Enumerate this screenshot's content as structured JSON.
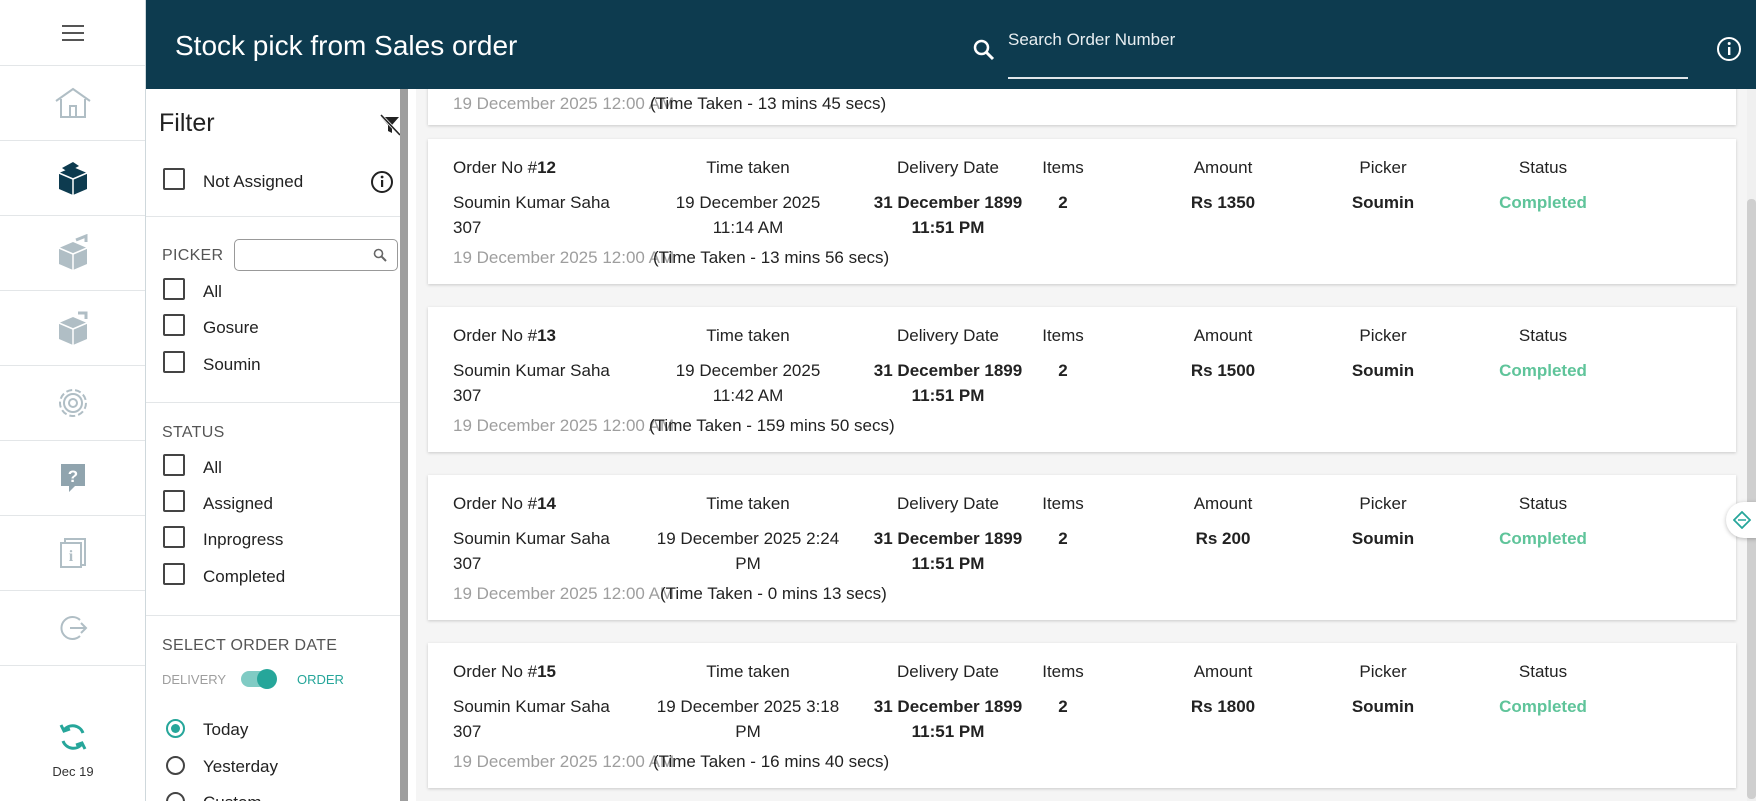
{
  "header": {
    "title": "Stock pick from Sales order",
    "search_placeholder": "Search Order Number"
  },
  "rail": {
    "items": [
      "menu-icon",
      "home-icon",
      "box-open-icon",
      "box-out-icon",
      "box-in-icon",
      "gear-icon",
      "help-icon",
      "info-doc-icon",
      "logout-icon"
    ],
    "sync_date": "Dec 19"
  },
  "filter": {
    "title": "Filter",
    "not_assigned": "Not Assigned",
    "picker_label": "PICKER",
    "pickers": [
      "All",
      "Gosure",
      "Soumin"
    ],
    "status_label": "STATUS",
    "statuses": [
      "All",
      "Assigned",
      "Inprogress",
      "Completed"
    ],
    "date_label": "SELECT ORDER DATE",
    "toggle_left": "DELIVERY",
    "toggle_right": "ORDER",
    "date_options": [
      "Today",
      "Yesterday",
      "Custom"
    ],
    "selected_date_option": "Today"
  },
  "columns": {
    "time_taken": "Time taken",
    "delivery_date": "Delivery Date",
    "items": "Items",
    "amount": "Amount",
    "picker": "Picker",
    "status": "Status",
    "order_prefix": "Order No #"
  },
  "partial_row": {
    "created": "19 December 2025 12:00 AM",
    "duration": "(Time Taken - 13 mins 45 secs)"
  },
  "orders": [
    {
      "number": "12",
      "customer": "Soumin Kumar Saha",
      "customer_code": "307",
      "time_taken_line1": "19 December 2025",
      "time_taken_line2": "11:14 AM",
      "delivery_line1": "31 December 1899",
      "delivery_line2": "11:51 PM",
      "items": "2",
      "amount": "Rs 1350",
      "picker": "Soumin",
      "status": "Completed",
      "created": "19 December 2025 12:00 AM",
      "duration": "(Time Taken - 13 mins 56 secs)"
    },
    {
      "number": "13",
      "customer": "Soumin Kumar Saha",
      "customer_code": "307",
      "time_taken_line1": "19 December 2025",
      "time_taken_line2": "11:42 AM",
      "delivery_line1": "31 December 1899",
      "delivery_line2": "11:51 PM",
      "items": "2",
      "amount": "Rs 1500",
      "picker": "Soumin",
      "status": "Completed",
      "created": "19 December 2025 12:00 AM",
      "duration": "(Time Taken - 159 mins 50 secs)"
    },
    {
      "number": "14",
      "customer": "Soumin Kumar Saha",
      "customer_code": "307",
      "time_taken_line1": "19 December 2025 2:24",
      "time_taken_line2": "PM",
      "delivery_line1": "31 December 1899",
      "delivery_line2": "11:51 PM",
      "items": "2",
      "amount": "Rs 200",
      "picker": "Soumin",
      "status": "Completed",
      "created": "19 December 2025 12:00 AM",
      "duration": "(Time Taken - 0 mins 13 secs)"
    },
    {
      "number": "15",
      "customer": "Soumin Kumar Saha",
      "customer_code": "307",
      "time_taken_line1": "19 December 2025 3:18",
      "time_taken_line2": "PM",
      "delivery_line1": "31 December 1899",
      "delivery_line2": "11:51 PM",
      "items": "2",
      "amount": "Rs 1800",
      "picker": "Soumin",
      "status": "Completed",
      "created": "19 December 2025 12:00 AM",
      "duration": "(Time Taken - 16 mins 40 secs)"
    }
  ],
  "colors": {
    "header_bg": "#0d3b4f",
    "accent_teal": "#26a69a",
    "status_completed": "#5fc49a",
    "active_bar": "#4dd0e1"
  }
}
